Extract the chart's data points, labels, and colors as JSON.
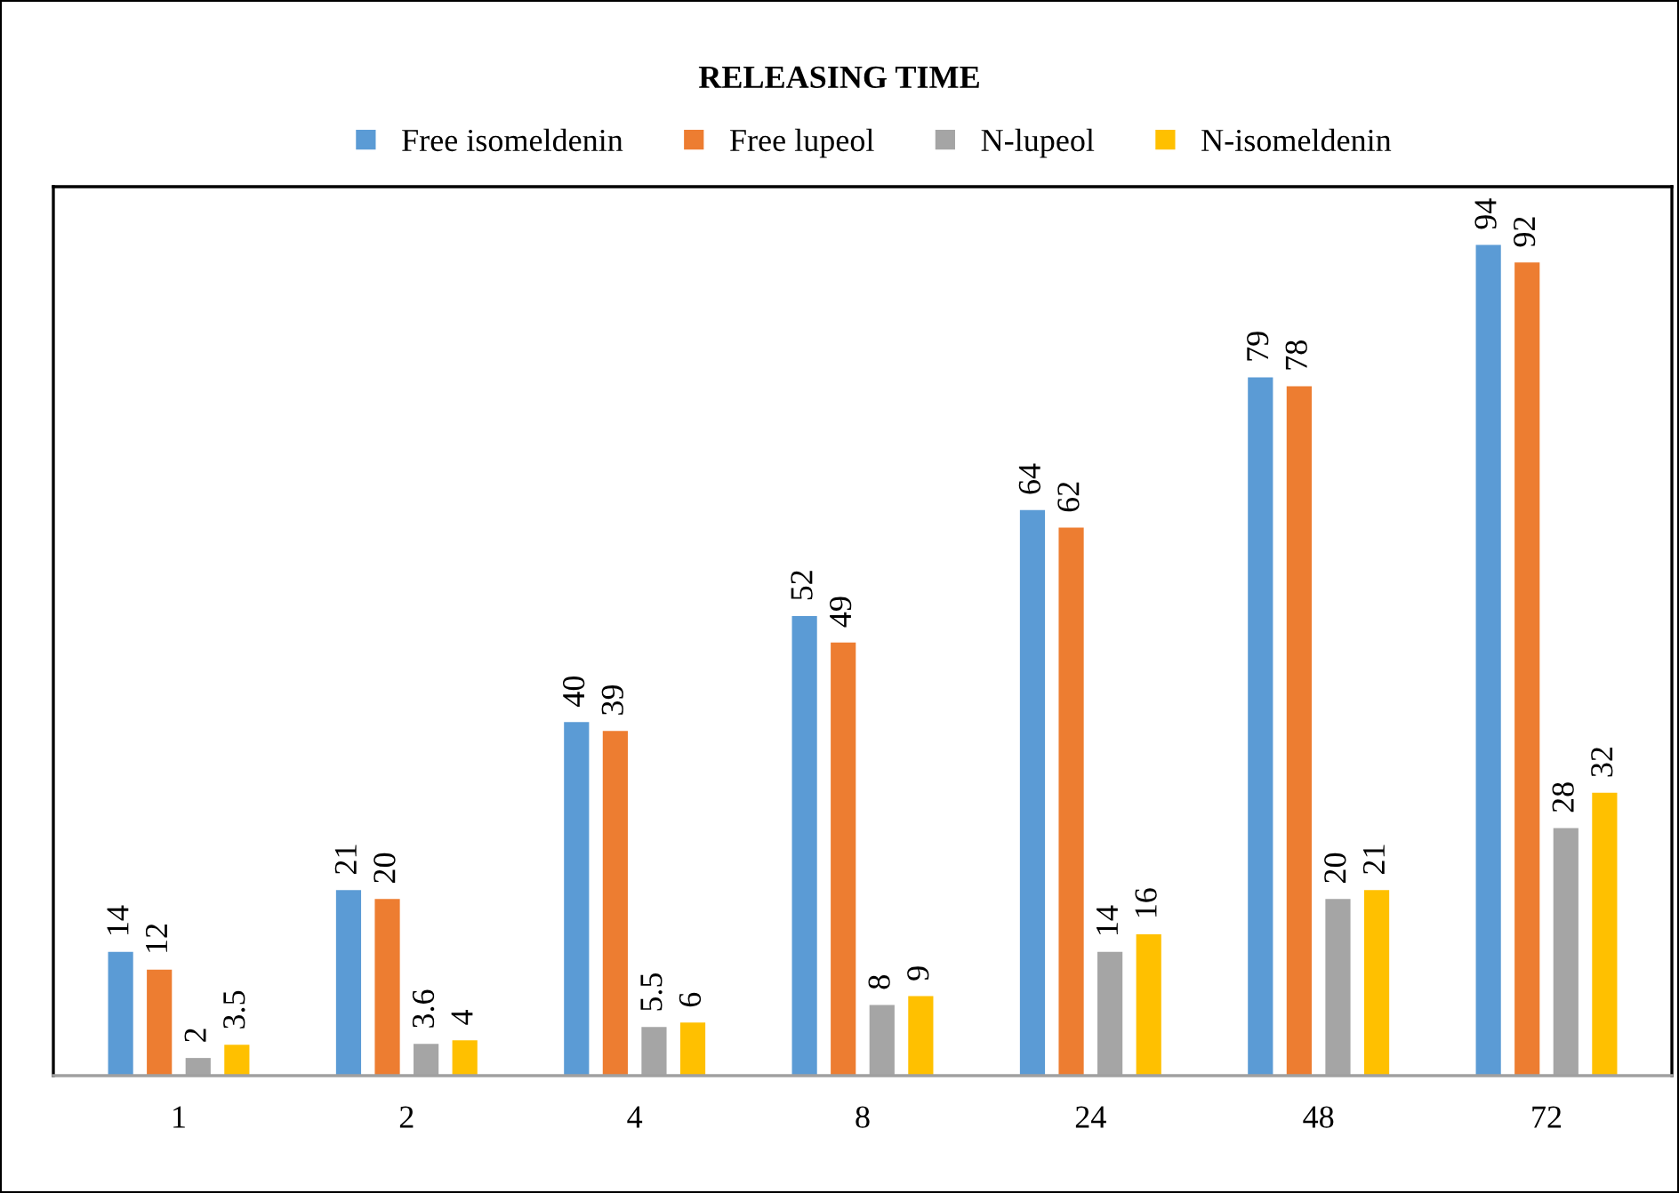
{
  "chart_data": {
    "type": "bar",
    "title": "RELEASING TIME",
    "categories": [
      "1",
      "2",
      "4",
      "8",
      "24",
      "48",
      "72"
    ],
    "series": [
      {
        "name": "Free isomeldenin",
        "color": "#5b9bd5",
        "values": [
          14,
          21,
          40,
          52,
          64,
          79,
          94
        ]
      },
      {
        "name": "Free lupeol",
        "color": "#ed7d31",
        "values": [
          12,
          20,
          39,
          49,
          62,
          78,
          92
        ]
      },
      {
        "name": "N-lupeol",
        "color": "#a5a5a5",
        "values": [
          2,
          3.6,
          5.5,
          8,
          14,
          20,
          28
        ]
      },
      {
        "name": "N-isomeldenin",
        "color": "#ffc000",
        "values": [
          3.5,
          4,
          6,
          9,
          16,
          21,
          32
        ]
      }
    ],
    "data_labels": true,
    "legend": "top",
    "grid": false,
    "tick_labels": "x"
  }
}
